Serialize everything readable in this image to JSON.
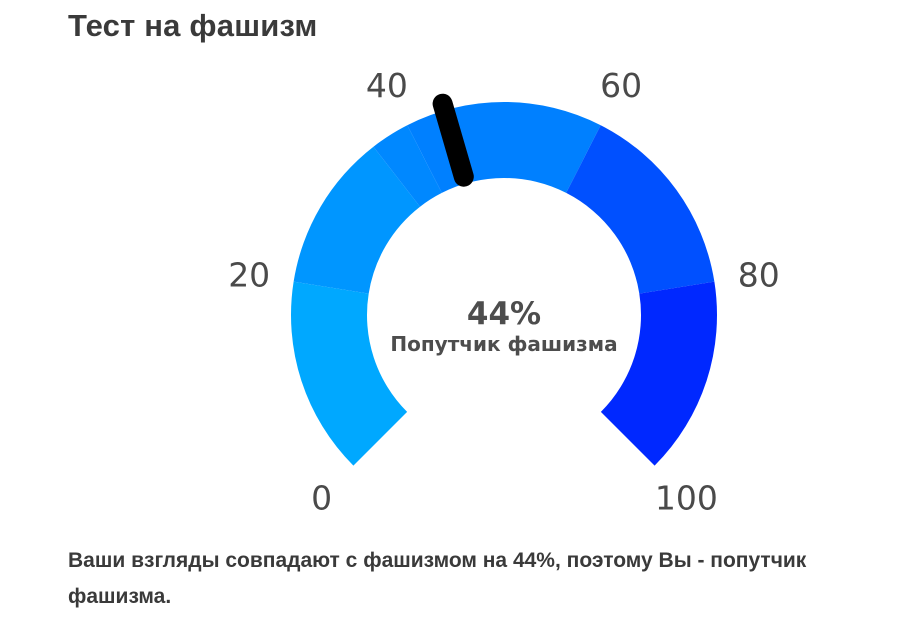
{
  "page": {
    "title": "Тест на фашизм",
    "result_text": "Ваши взгляды совпадают с фашизмом на 44%, поэтому Вы - попутчик фашизма."
  },
  "gauge": {
    "value_text": "44%",
    "label": "Попутчик фашизма",
    "ticks": [
      "0",
      "20",
      "40",
      "60",
      "80",
      "100"
    ]
  },
  "chart_data": {
    "type": "gauge",
    "min": 0,
    "max": 100,
    "value": 44,
    "tick_values": [
      0,
      20,
      40,
      60,
      80,
      100
    ],
    "bands": [
      {
        "from": 0,
        "to": 20,
        "color": "#00a8ff"
      },
      {
        "from": 20,
        "to": 36,
        "color": "#0096ff"
      },
      {
        "from": 36,
        "to": 40,
        "color": "#0088ff"
      },
      {
        "from": 40,
        "to": 60,
        "color": "#0080ff"
      },
      {
        "from": 60,
        "to": 80,
        "color": "#0050ff"
      },
      {
        "from": 80,
        "to": 100,
        "color": "#0028ff"
      }
    ],
    "needle_color": "#000000"
  }
}
